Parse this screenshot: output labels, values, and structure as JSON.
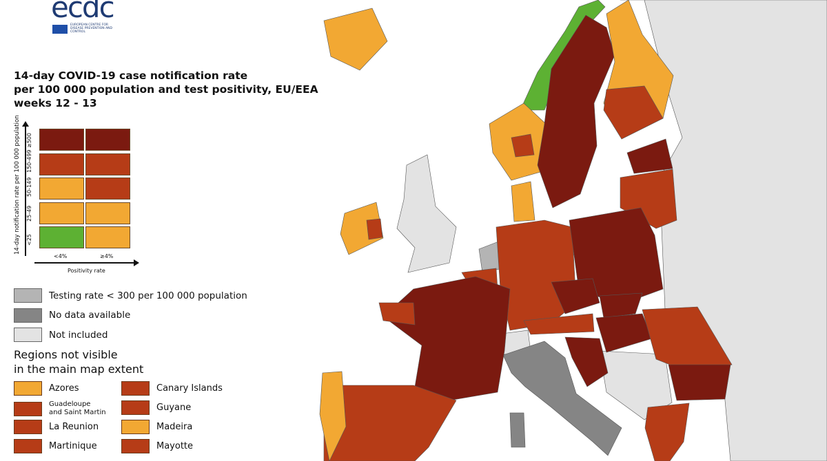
{
  "colors": {
    "dark_red": "#7b1a10",
    "red": "#b63c17",
    "orange": "#f2a833",
    "green": "#5db133",
    "testing_low": "#b4b4b4",
    "no_data": "#858585",
    "not_included": "#e3e3e3"
  },
  "logo": {
    "text": "ecdc",
    "subtitle": "European Centre for Disease Prevention and Control"
  },
  "title": {
    "line1": "14-day COVID-19 case notification rate",
    "line2": "per 100 000 population and test positivity, EU/EEA",
    "line3": "weeks 12 - 13"
  },
  "matrix": {
    "y_title": "14-day notification rate per 100 000 population",
    "x_title": "Positivity rate",
    "y_labels": [
      "≥500",
      "150-499",
      "50-149",
      "25-49",
      "<25"
    ],
    "x_labels": [
      "<4%",
      "≥4%"
    ],
    "cells": [
      [
        "dark_red",
        "dark_red"
      ],
      [
        "red",
        "red"
      ],
      [
        "orange",
        "red"
      ],
      [
        "orange",
        "orange"
      ],
      [
        "green",
        "orange"
      ]
    ]
  },
  "legend": [
    {
      "label": "Testing rate < 300 per 100 000 population",
      "color": "testing_low"
    },
    {
      "label": "No data available",
      "color": "no_data"
    },
    {
      "label": "Not included",
      "color": "not_included"
    }
  ],
  "outside_regions": {
    "title_line1": "Regions not visible",
    "title_line2": "in the main map extent",
    "items": [
      {
        "label": "Azores",
        "color": "orange"
      },
      {
        "label": "Canary Islands",
        "color": "red"
      },
      {
        "label": "Guadeloupe\nand Saint Martin",
        "color": "red"
      },
      {
        "label": "Guyane",
        "color": "red"
      },
      {
        "label": "La Reunion",
        "color": "red"
      },
      {
        "label": "Madeira",
        "color": "orange"
      },
      {
        "label": "Martinique",
        "color": "red"
      },
      {
        "label": "Mayotte",
        "color": "red"
      }
    ]
  }
}
